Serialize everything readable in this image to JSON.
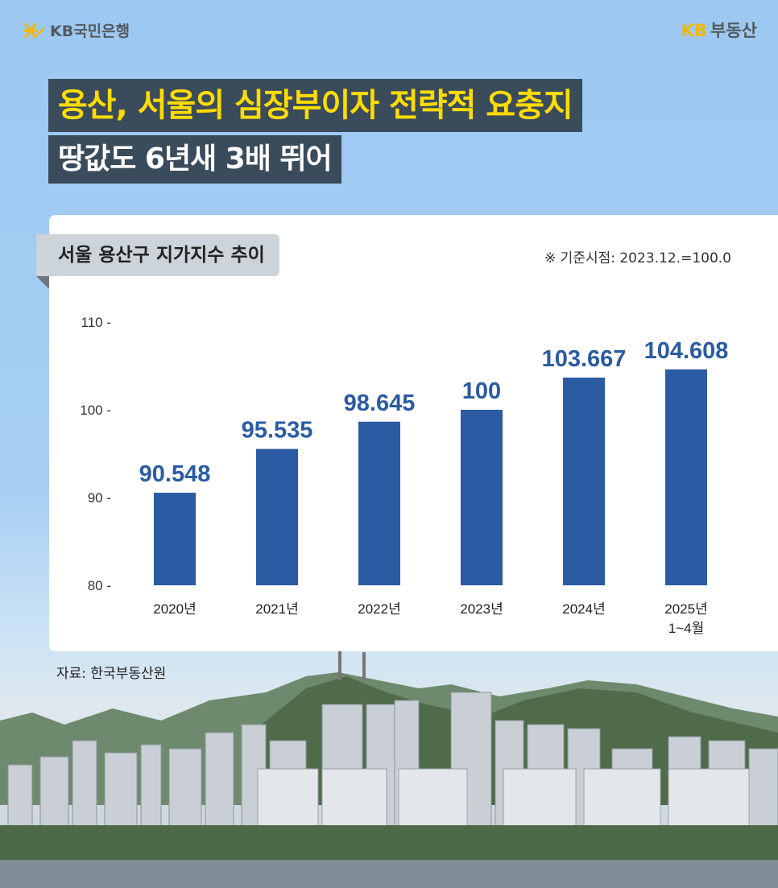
{
  "brand": {
    "kb_logo_text": "KB국민은행",
    "kb_realestate_kb": "KB",
    "kb_realestate_text": "부동산"
  },
  "headline": {
    "line1": "용산, 서울의 심장부이자 전략적 요충지",
    "line2": "땅값도 6년새 3배 뛰어"
  },
  "chart_box": {
    "title": "서울 용산구 지가지수 추이",
    "baseline_note": "※ 기준시점: 2023.12.=100.0"
  },
  "source_note": "자료: 한국부동산원",
  "chart_data": {
    "type": "bar",
    "title": "서울 용산구 지가지수 추이",
    "categories": [
      "2020년",
      "2021년",
      "2022년",
      "2023년",
      "2024년",
      "2025년\n1~4월"
    ],
    "values": [
      90.548,
      95.535,
      98.645,
      100,
      103.667,
      104.608
    ],
    "value_labels": [
      "90.548",
      "95.535",
      "98.645",
      "100",
      "103.667",
      "104.608"
    ],
    "ylim": [
      80,
      110
    ],
    "yticks": [
      80,
      90,
      100,
      110
    ],
    "ytick_labels": [
      "80 -",
      "90 -",
      "100 -",
      "110 -"
    ],
    "bar_color": "#2a5ba3",
    "label_color": "#2a5ba3",
    "grid": false
  },
  "colors": {
    "headline_bg": "#3a4b5c",
    "headline_accent": "#ffdc00",
    "tag_bg": "#ccd3d9"
  }
}
